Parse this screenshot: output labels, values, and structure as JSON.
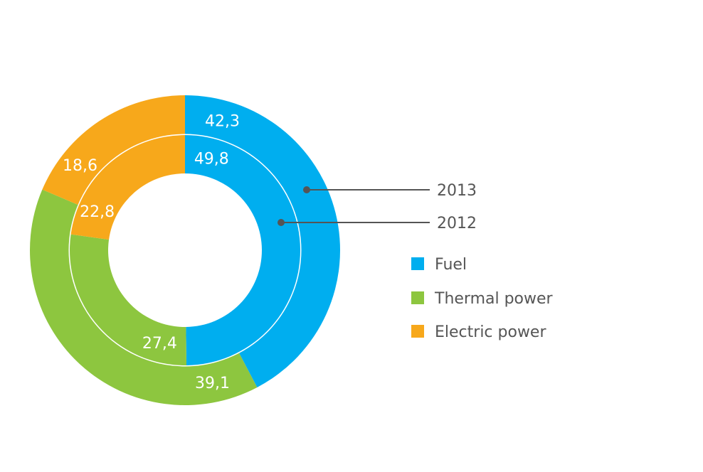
{
  "chart_data": {
    "type": "pie",
    "variant": "double-donut",
    "categories": [
      "Fuel",
      "Thermal power",
      "Electric power"
    ],
    "colors": [
      "#00aeef",
      "#8dc63f",
      "#f7a81b"
    ],
    "series": [
      {
        "name": "2013",
        "ring": "outer",
        "values": [
          42.3,
          39.1,
          18.6
        ],
        "labels": [
          "42,3",
          "39,1",
          "18,6"
        ]
      },
      {
        "name": "2012",
        "ring": "inner",
        "values": [
          49.8,
          27.4,
          22.8
        ],
        "labels": [
          "49,8",
          "27,4",
          "22,8"
        ]
      }
    ],
    "legend_position": "right"
  }
}
